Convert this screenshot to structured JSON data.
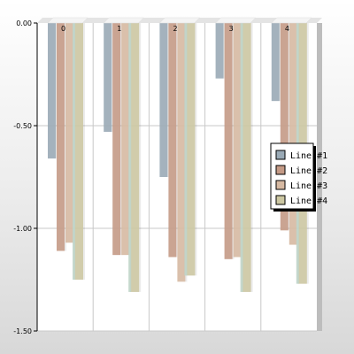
{
  "chart_data": {
    "type": "bar",
    "categories": [
      "0",
      "1",
      "2",
      "3",
      "4"
    ],
    "series": [
      {
        "name": "Line #1",
        "color": "#9aaab6",
        "values": [
          -0.66,
          -0.53,
          -0.75,
          -0.27,
          -0.38
        ]
      },
      {
        "name": "Line #2",
        "color": "#c49a86",
        "values": [
          -1.11,
          -1.13,
          -1.14,
          -1.15,
          -1.01
        ]
      },
      {
        "name": "Line #3",
        "color": "#d6b9a2",
        "values": [
          -1.07,
          -1.13,
          -1.26,
          -1.14,
          -1.08
        ]
      },
      {
        "name": "Line #4",
        "color": "#ccc7a2",
        "values": [
          -1.25,
          -1.31,
          -1.23,
          -1.31,
          -1.27
        ]
      }
    ],
    "series_extra_color": "#bfd4c8",
    "ylim": [
      -1.5,
      0
    ],
    "yticks": [
      {
        "value": 0,
        "label": "0.00"
      },
      {
        "value": -0.5,
        "label": "-0.50"
      },
      {
        "value": -1.0,
        "label": "-1.00"
      },
      {
        "value": -1.5,
        "label": "-1.50"
      }
    ],
    "grid": true,
    "legend_position": "right",
    "colors": {
      "plot_background": "#ffffff",
      "grid": "#c8c8c8",
      "axis": "#000000"
    }
  }
}
